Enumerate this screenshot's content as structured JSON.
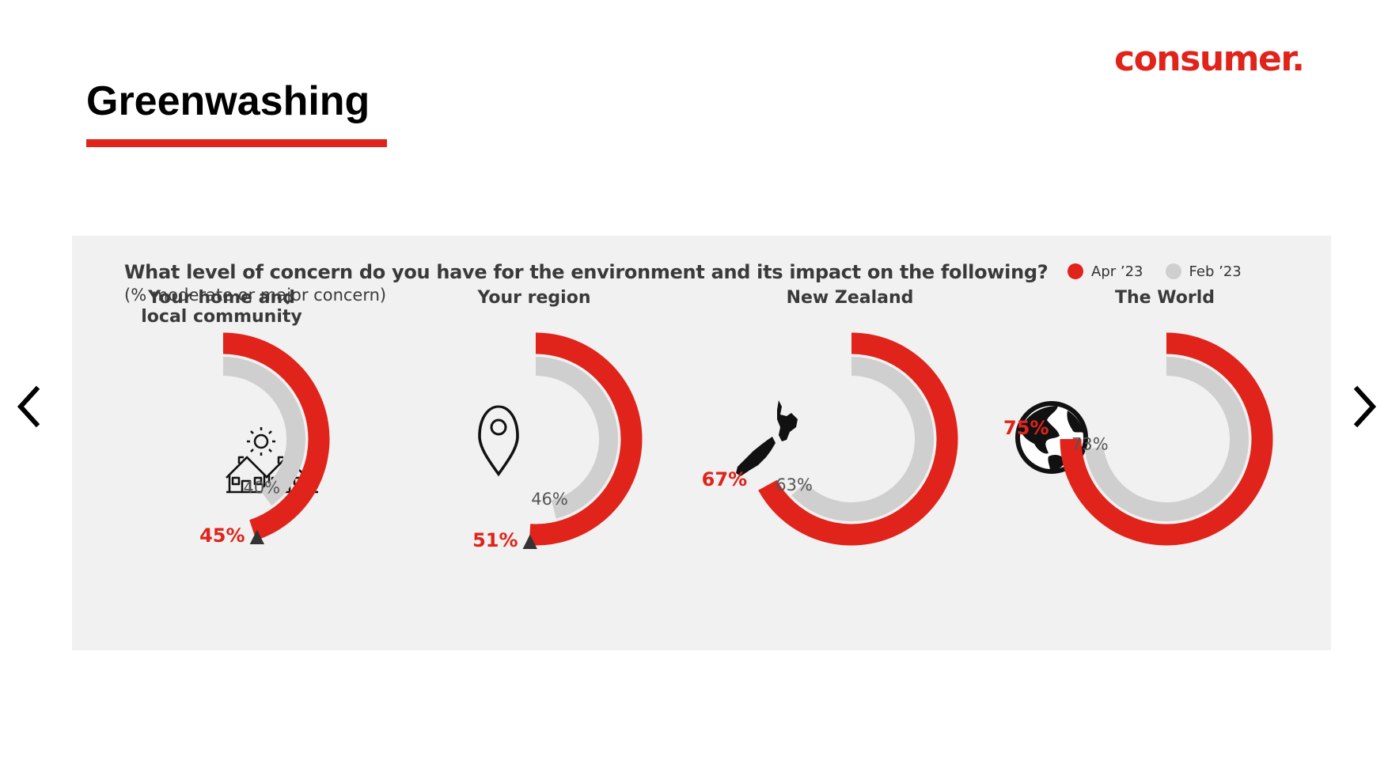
{
  "brand": {
    "logo_text": "consumer.",
    "accent_color": "#e0231b"
  },
  "page": {
    "title": "Greenwashing"
  },
  "navigation": {
    "prev_icon": "chevron-left-icon",
    "next_icon": "chevron-right-icon"
  },
  "chart_data": {
    "type": "radial-bar",
    "title": "What level of concern do you have for the environment and its impact on the following?",
    "subtitle": "(% moderate or major concern)",
    "legend_placement": "top-right",
    "series": [
      {
        "name": "Apr ’23",
        "color": "#e0231b"
      },
      {
        "name": "Feb ’23",
        "color": "#d0cfcf"
      }
    ],
    "max": 100,
    "categories": [
      {
        "label_lines": [
          "Your home and",
          "local community"
        ],
        "apr": 45,
        "feb": 40,
        "apr_label": "45%",
        "feb_label": "40%",
        "change_marker": "▲",
        "icon": "houses-icon"
      },
      {
        "label_lines": [
          "Your region"
        ],
        "apr": 51,
        "feb": 46,
        "apr_label": "51%",
        "feb_label": "46%",
        "change_marker": "▲",
        "icon": "location-pin-icon"
      },
      {
        "label_lines": [
          "New Zealand"
        ],
        "apr": 67,
        "feb": 63,
        "apr_label": "67%",
        "feb_label": "63%",
        "change_marker": "",
        "icon": "new-zealand-map-icon"
      },
      {
        "label_lines": [
          "The World"
        ],
        "apr": 75,
        "feb": 73,
        "apr_label": "75%",
        "feb_label": "73%",
        "change_marker": "",
        "icon": "globe-icon"
      }
    ]
  }
}
